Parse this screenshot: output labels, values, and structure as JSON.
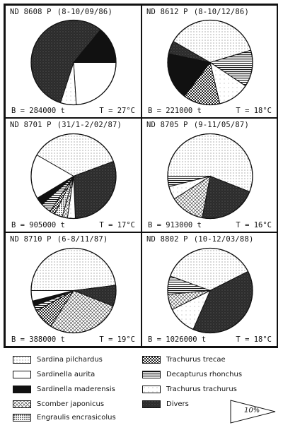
{
  "panels": [
    {
      "id": "ND 8608 P",
      "date": "(8-10/09/86)",
      "biomass": "B = 284000 t",
      "temperature": "T = 27°C"
    },
    {
      "id": "ND 8612 P",
      "date": "(8-10/12/86)",
      "biomass": "B = 221000 t",
      "temperature": "T = 18°C"
    },
    {
      "id": "ND 8701 P",
      "date": "(31/1-2/02/87)",
      "biomass": "B = 905000 t",
      "temperature": "T = 17°C"
    },
    {
      "id": "ND 8705 P",
      "date": "(9-11/05/87)",
      "biomass": "B = 913000 t",
      "temperature": "T = 16°C"
    },
    {
      "id": "ND 8710 P",
      "date": "(6-8/11/87)",
      "biomass": "B = 388000 t",
      "temperature": "T = 19°C"
    },
    {
      "id": "ND 8802 P",
      "date": "(10-12/03/88)",
      "biomass": "B = 1026000 t",
      "temperature": "T = 18°C"
    }
  ],
  "legend": [
    {
      "label": "Sardina pilchardus",
      "pattern": "dots"
    },
    {
      "label": "Sardinella aurita",
      "pattern": "white"
    },
    {
      "label": "Sardinella maderensis",
      "pattern": "black"
    },
    {
      "label": "Scomber japonicus",
      "pattern": "cross"
    },
    {
      "label": "Engraulis encrasicolus",
      "pattern": "dense-dots"
    },
    {
      "label": "Trachurus trecae",
      "pattern": "checker"
    },
    {
      "label": "Decapturus rhonchus",
      "pattern": "hlines"
    },
    {
      "label": "Trachurus trachurus",
      "pattern": "sparse"
    },
    {
      "label": "Divers",
      "pattern": "dark"
    }
  ],
  "scale_label": "10%",
  "chart_data": [
    {
      "type": "pie",
      "title": "ND 8608 P (8-10/09/86)",
      "species": [
        "Sardina pilchardus",
        "Sardinella aurita",
        "Sardinella maderensis",
        "Scomber japonicus",
        "Engraulis encrasicolus",
        "Trachurus trecae",
        "Decapturus rhonchus",
        "Trachurus trachurus",
        "Divers"
      ],
      "values": [
        0,
        24,
        14,
        0,
        0,
        0,
        0,
        6,
        56
      ]
    },
    {
      "type": "pie",
      "title": "ND 8612 P (8-10/12/86)",
      "species": [
        "Sardina pilchardus",
        "Sardinella aurita",
        "Sardinella maderensis",
        "Scomber japonicus",
        "Engraulis encrasicolus",
        "Trachurus trecae",
        "Decapturus rhonchus",
        "Trachurus trachurus",
        "Divers"
      ],
      "values": [
        37,
        0,
        18,
        0,
        0,
        14,
        14,
        12,
        5
      ]
    },
    {
      "type": "pie",
      "title": "ND 8701 P (31/1-2/02/87)",
      "species": [
        "Sardina pilchardus",
        "Sardinella aurita",
        "Sardinella maderensis",
        "Scomber japonicus",
        "Engraulis encrasicolus",
        "Trachurus trecae",
        "Decapturus rhonchus",
        "Trachurus trachurus",
        "Divers"
      ],
      "values": [
        36,
        17,
        3,
        2,
        3,
        2,
        4,
        3,
        30
      ]
    },
    {
      "type": "pie",
      "title": "ND 8705 P (9-11/05/87)",
      "species": [
        "Sardina pilchardus",
        "Sardinella aurita",
        "Sardinella maderensis",
        "Scomber japonicus",
        "Engraulis encrasicolus",
        "Trachurus trecae",
        "Decapturus rhonchus",
        "Trachurus trachurus",
        "Divers"
      ],
      "values": [
        56,
        0,
        0,
        13,
        0,
        0,
        4,
        5,
        22
      ]
    },
    {
      "type": "pie",
      "title": "ND 8710 P (6-8/11/87)",
      "species": [
        "Sardina pilchardus",
        "Sardinella aurita",
        "Sardinella maderensis",
        "Scomber japonicus",
        "Engraulis encrasicolus",
        "Trachurus trecae",
        "Decapturus rhonchus",
        "Trachurus trachurus",
        "Divers"
      ],
      "values": [
        48,
        4,
        2,
        28,
        0,
        8,
        2,
        0,
        8
      ]
    },
    {
      "type": "pie",
      "title": "ND 8802 P (10-12/03/88)",
      "species": [
        "Sardina pilchardus",
        "Sardinella aurita",
        "Sardinella maderensis",
        "Scomber japonicus",
        "Engraulis encrasicolus",
        "Trachurus trecae",
        "Decapturus rhonchus",
        "Trachurus trachurus",
        "Divers"
      ],
      "values": [
        37,
        0,
        0,
        6,
        0,
        0,
        7,
        11,
        39
      ]
    }
  ]
}
